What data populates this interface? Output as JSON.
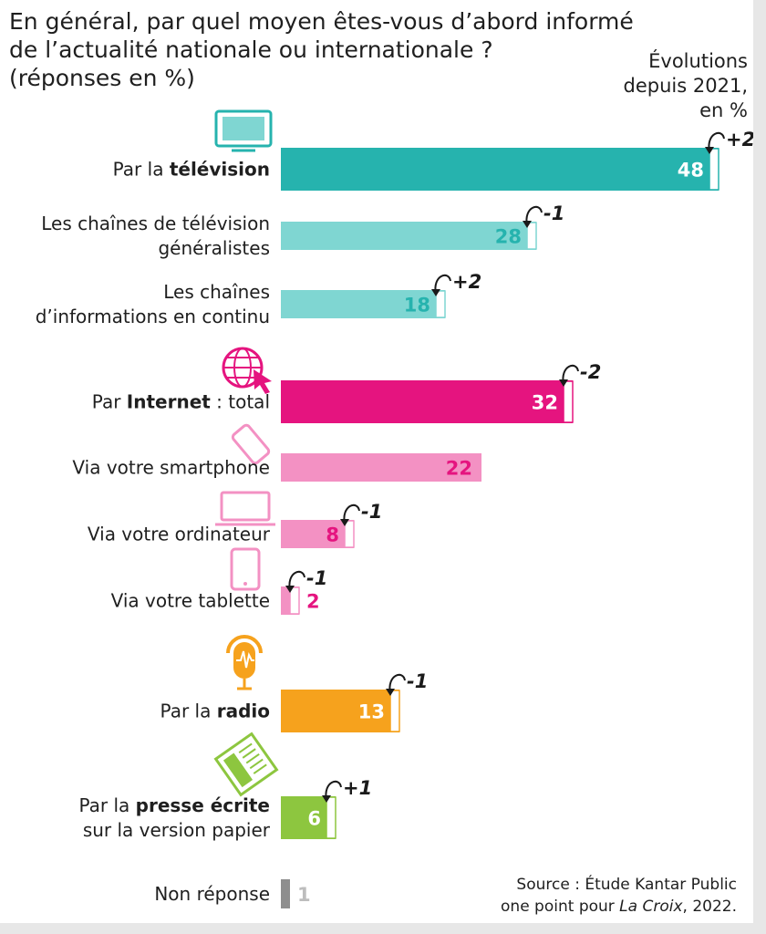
{
  "title_lines": [
    "En général, par quel moyen êtes-vous d’abord informé",
    "de l’actualité nationale ou internationale ?",
    "(réponses en %)"
  ],
  "evolution_note": [
    "Évolutions",
    "depuis 2021,",
    "en %"
  ],
  "source": {
    "line1": "Source : Étude Kantar Public",
    "line2_prefix": "one point pour ",
    "line2_italic": "La Croix",
    "line2_suffix": ", 2022."
  },
  "colors": {
    "television": "#26b3ae",
    "television_sub": "#7fd6d2",
    "internet": "#e5147f",
    "internet_sub": "#f391c3",
    "radio": "#f6a21d",
    "presse": "#8dc63f",
    "non_reponse": "#8e8e8e"
  },
  "chart_data": {
    "type": "bar",
    "orientation": "horizontal",
    "unit": "%",
    "categories": [
      "Par la télévision",
      "Les chaînes de télévision généralistes",
      "Les chaînes d’informations en continu",
      "Par Internet : total",
      "Via votre smartphone",
      "Via votre ordinateur",
      "Via votre tablette",
      "Par la radio",
      "Par la presse écrite sur la version papier",
      "Non réponse"
    ],
    "values": [
      48,
      28,
      18,
      32,
      22,
      8,
      2,
      13,
      6,
      1
    ],
    "changes_since_2021": [
      "+2",
      "-1",
      "+2",
      "-2",
      "",
      "-1",
      "-1",
      "-1",
      "+1",
      ""
    ],
    "rows": [
      {
        "label_parts": [
          {
            "t": "Par la ",
            "b": false
          },
          {
            "t": "télévision",
            "b": true
          }
        ],
        "value": 48,
        "change": "+2",
        "color_key": "television",
        "value_color": "#ffffff",
        "value_inside": true,
        "icon": "tv-icon"
      },
      {
        "label_parts": [
          {
            "t": "Les chaînes de télévision",
            "b": false
          },
          {
            "t": "généralistes",
            "b": false,
            "nl": true
          }
        ],
        "value": 28,
        "change": "-1",
        "color_key": "television_sub",
        "value_color": "#26b3ae",
        "value_inside": true,
        "icon": ""
      },
      {
        "label_parts": [
          {
            "t": "Les chaînes",
            "b": false
          },
          {
            "t": "d’informations en continu",
            "b": false,
            "nl": true
          }
        ],
        "value": 18,
        "change": "+2",
        "color_key": "television_sub",
        "value_color": "#26b3ae",
        "value_inside": true,
        "icon": ""
      },
      {
        "label_parts": [
          {
            "t": "Par ",
            "b": false
          },
          {
            "t": "Internet",
            "b": true
          },
          {
            "t": " : total",
            "b": false
          }
        ],
        "value": 32,
        "change": "-2",
        "color_key": "internet",
        "value_color": "#ffffff",
        "value_inside": true,
        "icon": "globe-icon"
      },
      {
        "label_parts": [
          {
            "t": "Via votre smartphone",
            "b": false
          }
        ],
        "value": 22,
        "change": "",
        "color_key": "internet_sub",
        "value_color": "#e5147f",
        "value_inside": true,
        "icon": "smartphone-icon"
      },
      {
        "label_parts": [
          {
            "t": "Via votre ordinateur",
            "b": false
          }
        ],
        "value": 8,
        "change": "-1",
        "color_key": "internet_sub",
        "value_color": "#e5147f",
        "value_inside": true,
        "icon": "laptop-icon"
      },
      {
        "label_parts": [
          {
            "t": "Via votre tablette",
            "b": false
          }
        ],
        "value": 2,
        "change": "-1",
        "color_key": "internet_sub",
        "value_color": "#e5147f",
        "value_inside": false,
        "icon": "tablet-icon"
      },
      {
        "label_parts": [
          {
            "t": "Par la ",
            "b": false
          },
          {
            "t": "radio",
            "b": true
          }
        ],
        "value": 13,
        "change": "-1",
        "color_key": "radio",
        "value_color": "#ffffff",
        "value_inside": true,
        "icon": "radio-microphone-icon"
      },
      {
        "label_parts": [
          {
            "t": "Par la ",
            "b": false
          },
          {
            "t": "presse écrite",
            "b": true
          },
          {
            "t": "sur la version papier",
            "b": false,
            "nl": true
          }
        ],
        "value": 6,
        "change": "+1",
        "color_key": "presse",
        "value_color": "#ffffff",
        "value_inside": true,
        "icon": "newspaper-icon"
      },
      {
        "label_parts": [
          {
            "t": "Non réponse",
            "b": false
          }
        ],
        "value": 1,
        "change": "",
        "color_key": "non_reponse",
        "value_color": "#bdbdbd",
        "value_inside": false,
        "icon": ""
      }
    ],
    "xlim": [
      0,
      50
    ],
    "grid": false,
    "legend": "none"
  }
}
